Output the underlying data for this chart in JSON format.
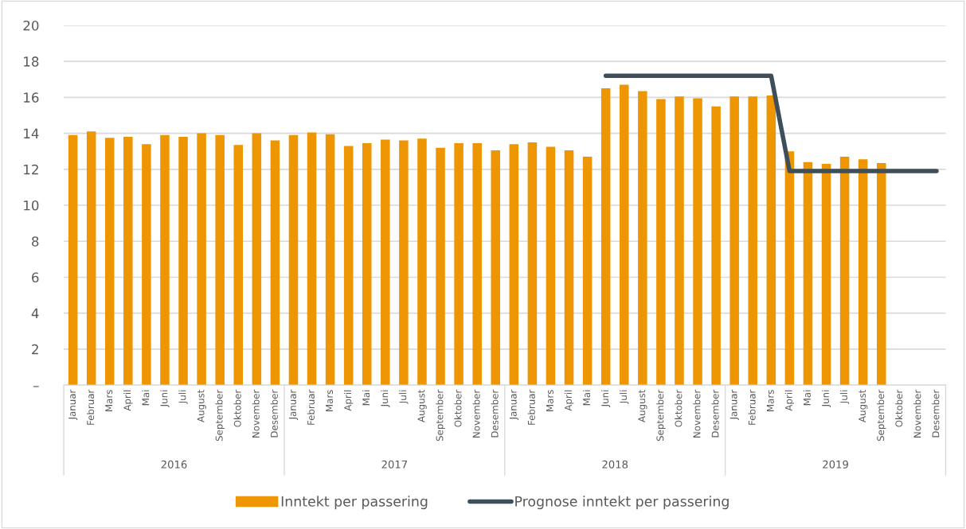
{
  "chart_data": {
    "type": "bar",
    "categories": [
      "Januar",
      "Februar",
      "Mars",
      "April",
      "Mai",
      "Juni",
      "Juli",
      "August",
      "September",
      "Oktober",
      "November",
      "Desember",
      "Januar",
      "Februar",
      "Mars",
      "April",
      "Mai",
      "Juni",
      "Juli",
      "August",
      "September",
      "Oktober",
      "November",
      "Desember",
      "Januar",
      "Februar",
      "Mars",
      "April",
      "Mai",
      "Juni",
      "Juli",
      "August",
      "September",
      "Oktober",
      "November",
      "Desember",
      "Januar",
      "Februar",
      "Mars",
      "April",
      "Mai",
      "Juni",
      "Juli",
      "August",
      "September",
      "Oktober",
      "November",
      "Desember"
    ],
    "series": [
      {
        "name": "Inntekt per passering",
        "color": "#ee9602",
        "values": [
          13.9,
          14.1,
          13.75,
          13.8,
          13.4,
          13.9,
          13.8,
          14.0,
          13.9,
          13.35,
          14.0,
          13.6,
          13.9,
          14.05,
          13.95,
          13.3,
          13.45,
          13.65,
          13.6,
          13.7,
          13.2,
          13.45,
          13.45,
          13.05,
          13.4,
          13.5,
          13.25,
          13.05,
          12.7,
          16.5,
          16.7,
          16.35,
          15.9,
          16.05,
          15.95,
          15.5,
          16.05,
          16.05,
          16.1,
          13.0,
          12.4,
          12.3,
          12.7,
          12.55,
          12.35,
          null,
          null,
          null
        ]
      },
      {
        "name": "Prognose inntekt per passering",
        "color": "#3f4f5a",
        "type": "line",
        "values": [
          null,
          null,
          null,
          null,
          null,
          null,
          null,
          null,
          null,
          null,
          null,
          null,
          null,
          null,
          null,
          null,
          null,
          null,
          null,
          null,
          null,
          null,
          null,
          null,
          null,
          null,
          null,
          null,
          null,
          17.2,
          17.2,
          17.2,
          17.2,
          17.2,
          17.2,
          17.2,
          17.2,
          17.2,
          17.2,
          11.9,
          11.9,
          11.9,
          11.9,
          11.9,
          11.9,
          11.9,
          11.9,
          11.9
        ]
      }
    ],
    "annotations": [
      "2016",
      "2017",
      "2018",
      "2019"
    ],
    "ylim": [
      0,
      20
    ],
    "yticks": [
      {
        "value": 0,
        "label": "–"
      },
      2,
      4,
      6,
      8,
      10,
      12,
      14,
      16,
      18,
      20
    ],
    "grid": "y",
    "legend": "bottom"
  }
}
